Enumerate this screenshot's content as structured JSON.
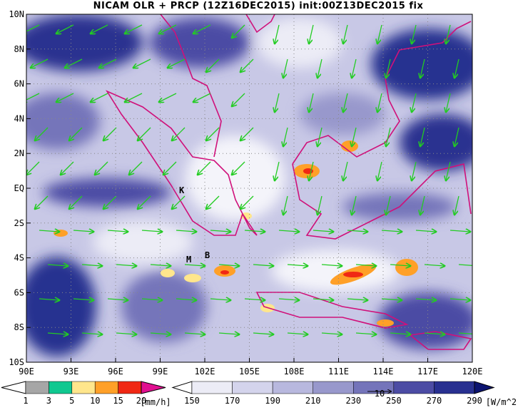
{
  "title": "NICAM OLR + PRCP (12Z16DEC2015) init:00Z13DEC2015 fix",
  "lon_labels": [
    "90E",
    "93E",
    "96E",
    "99E",
    "102E",
    "105E",
    "108E",
    "111E",
    "114E",
    "117E",
    "120E"
  ],
  "lat_labels": [
    "10N",
    "8N",
    "6N",
    "4N",
    "2N",
    "EQ",
    "2S",
    "4S",
    "6S",
    "8S",
    "10S"
  ],
  "markers": [
    {
      "label": "K"
    },
    {
      "label": "M"
    },
    {
      "label": "B"
    }
  ],
  "vector_reference": "10",
  "precip_colorbar": {
    "labels": [
      "1",
      "3",
      "5",
      "10",
      "15",
      "20"
    ],
    "unit": "[mm/h]",
    "colors": [
      "#ffffff",
      "#a6a6a6",
      "#10c890",
      "#ffe68c",
      "#ffa028",
      "#f02814",
      "#e01090"
    ]
  },
  "olr_colorbar": {
    "labels": [
      "150",
      "170",
      "190",
      "210",
      "230",
      "250",
      "270",
      "290"
    ],
    "unit": "[W/m^2]",
    "colors": [
      "#ffffff",
      "#ececf6",
      "#d4d4ec",
      "#b8b8de",
      "#9898cc",
      "#7474ba",
      "#4c4ca4",
      "#283090",
      "#0c1470"
    ]
  }
}
